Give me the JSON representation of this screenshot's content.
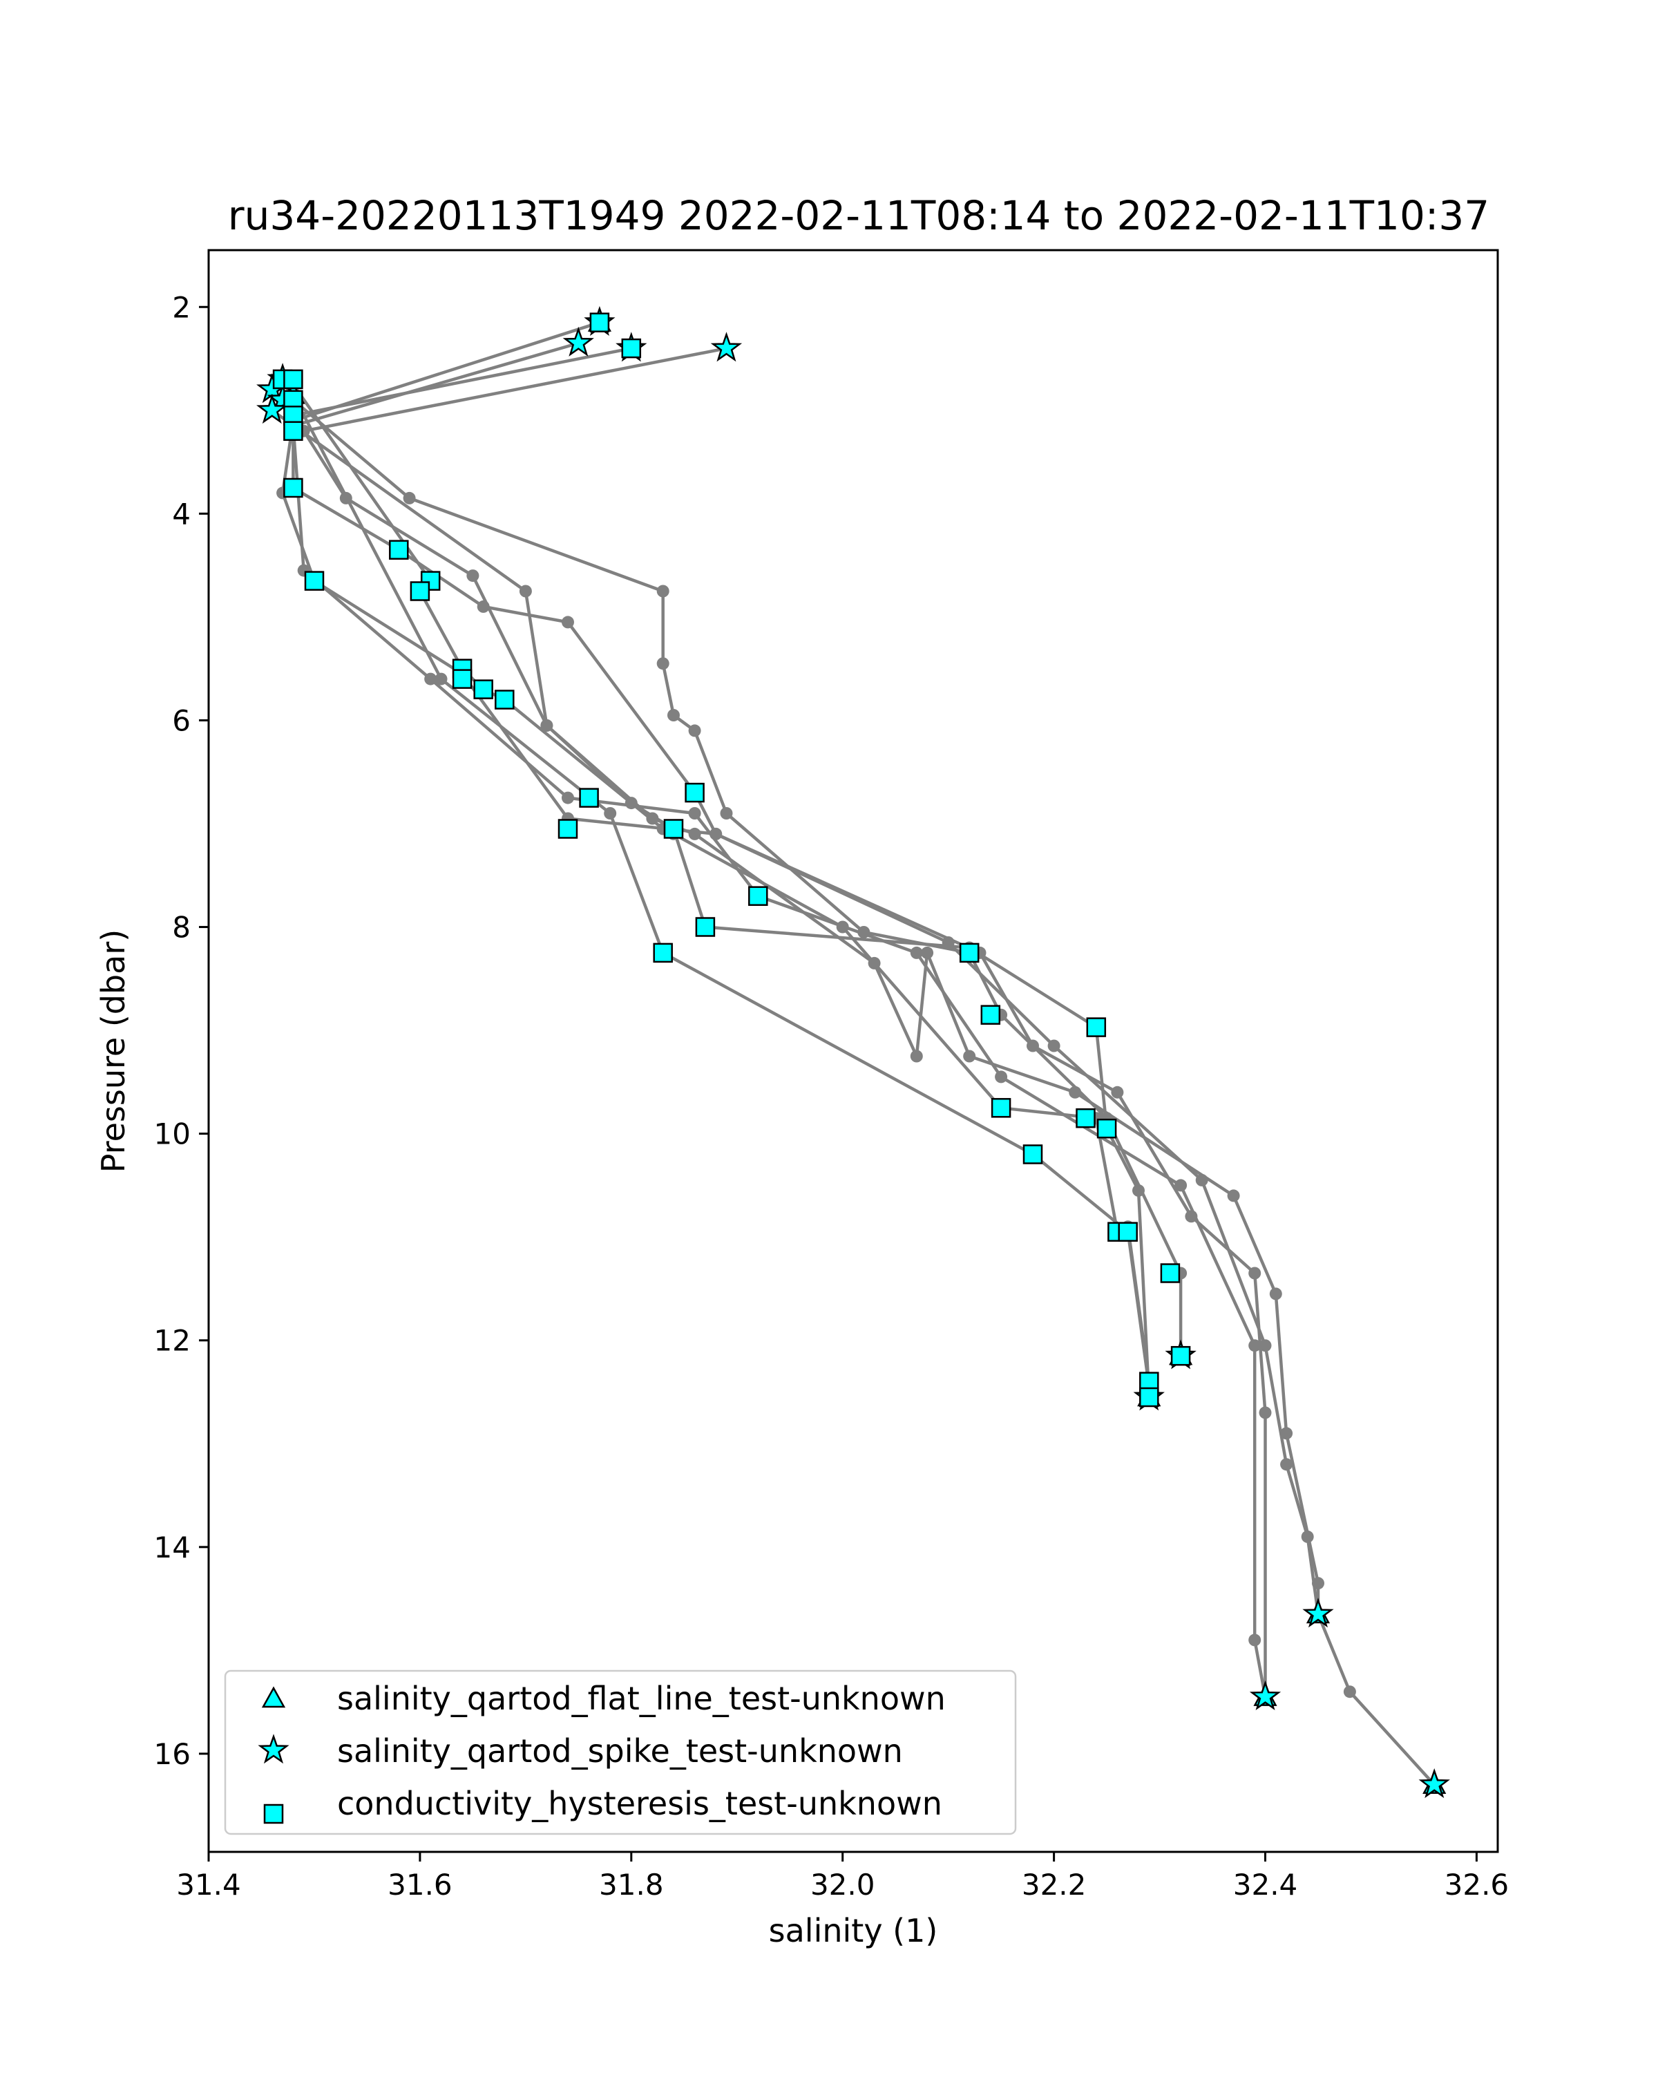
{
  "chart_data": {
    "type": "scatter",
    "title": "ru34-20220113T1949 2022-02-11T08:14 to 2022-02-11T10:37",
    "xlabel": "salinity (1)",
    "ylabel": "Pressure (dbar)",
    "xlim": [
      31.4,
      32.62
    ],
    "ylim": [
      16.95,
      1.45
    ],
    "y_inverted": true,
    "grid": false,
    "legend_placement": "lower left",
    "x_ticks": [
      31.4,
      31.6,
      31.8,
      32.0,
      32.2,
      32.4,
      32.6
    ],
    "x_tick_labels": [
      "31.4",
      "31.6",
      "31.8",
      "32.0",
      "32.2",
      "32.4",
      "32.6"
    ],
    "y_ticks": [
      2,
      4,
      6,
      8,
      10,
      12,
      14,
      16
    ],
    "y_tick_labels": [
      "2",
      "4",
      "6",
      "8",
      "10",
      "12",
      "14",
      "16"
    ],
    "colors": {
      "profile_line": "#808080",
      "marker_fill": "#00ffff",
      "marker_edge": "#000000"
    },
    "profiles": [
      [
        [
          31.77,
          2.15
        ],
        [
          31.48,
          3.1
        ],
        [
          31.47,
          3.8
        ],
        [
          31.5,
          4.65
        ],
        [
          31.64,
          5.55
        ],
        [
          31.74,
          6.95
        ],
        [
          31.88,
          7.1
        ],
        [
          32.1,
          8.15
        ],
        [
          32.2,
          9.15
        ],
        [
          32.34,
          10.45
        ],
        [
          32.4,
          12.05
        ],
        [
          32.42,
          13.2
        ],
        [
          32.44,
          13.9
        ],
        [
          32.45,
          14.65
        ],
        [
          32.48,
          15.4
        ],
        [
          32.56,
          16.3
        ]
      ],
      [
        [
          31.75,
          2.35
        ],
        [
          31.48,
          3.15
        ],
        [
          31.49,
          4.55
        ],
        [
          31.61,
          5.6
        ],
        [
          31.74,
          6.75
        ],
        [
          31.86,
          6.9
        ],
        [
          31.92,
          7.7
        ],
        [
          32.07,
          8.25
        ],
        [
          32.15,
          9.45
        ],
        [
          32.32,
          10.5
        ],
        [
          32.39,
          12.05
        ],
        [
          32.39,
          14.9
        ],
        [
          32.4,
          15.45
        ]
      ],
      [
        [
          31.89,
          2.4
        ],
        [
          31.49,
          3.2
        ],
        [
          31.53,
          3.85
        ],
        [
          31.65,
          4.6
        ],
        [
          31.72,
          6.05
        ],
        [
          31.82,
          6.95
        ],
        [
          31.86,
          7.1
        ],
        [
          32.03,
          8.35
        ],
        [
          32.07,
          9.25
        ],
        [
          32.08,
          8.25
        ],
        [
          32.12,
          9.25
        ],
        [
          32.22,
          9.6
        ],
        [
          32.37,
          10.6
        ],
        [
          32.41,
          11.55
        ],
        [
          32.42,
          12.9
        ],
        [
          32.45,
          14.35
        ],
        [
          32.45,
          14.65
        ]
      ],
      [
        [
          31.8,
          2.4
        ],
        [
          31.48,
          3.05
        ],
        [
          31.48,
          3.75
        ],
        [
          31.58,
          4.35
        ],
        [
          31.66,
          4.9
        ],
        [
          31.74,
          5.05
        ],
        [
          31.86,
          6.7
        ],
        [
          31.88,
          7.1
        ],
        [
          32.13,
          8.25
        ],
        [
          32.18,
          9.15
        ],
        [
          32.26,
          9.6
        ],
        [
          32.33,
          10.8
        ],
        [
          32.39,
          11.35
        ],
        [
          32.4,
          12.7
        ],
        [
          32.4,
          15.45
        ]
      ],
      [
        [
          31.47,
          2.7
        ],
        [
          31.48,
          2.9
        ],
        [
          31.59,
          3.85
        ],
        [
          31.83,
          4.75
        ],
        [
          31.83,
          5.45
        ],
        [
          31.84,
          5.95
        ],
        [
          31.86,
          6.1
        ],
        [
          31.89,
          6.9
        ],
        [
          32.02,
          8.05
        ],
        [
          32.12,
          8.25
        ],
        [
          32.15,
          8.85
        ],
        [
          32.25,
          9.85
        ],
        [
          32.32,
          11.35
        ],
        [
          32.32,
          12.15
        ]
      ],
      [
        [
          31.46,
          3.0
        ],
        [
          31.7,
          4.75
        ],
        [
          31.72,
          6.05
        ],
        [
          31.8,
          6.8
        ],
        [
          31.84,
          7.05
        ],
        [
          31.87,
          8.0
        ],
        [
          32.12,
          8.2
        ],
        [
          32.24,
          8.97
        ],
        [
          32.25,
          9.95
        ],
        [
          32.28,
          10.55
        ],
        [
          32.29,
          12.55
        ]
      ],
      [
        [
          31.48,
          2.75
        ],
        [
          31.61,
          4.65
        ],
        [
          31.6,
          4.75
        ],
        [
          31.64,
          5.5
        ],
        [
          31.66,
          5.7
        ],
        [
          31.68,
          5.8
        ],
        [
          31.83,
          7.05
        ],
        [
          31.84,
          7.1
        ],
        [
          32.0,
          8.0
        ],
        [
          32.15,
          9.75
        ],
        [
          32.24,
          9.85
        ],
        [
          32.26,
          10.95
        ],
        [
          32.27,
          10.9
        ],
        [
          32.29,
          12.4
        ]
      ],
      [
        [
          31.48,
          2.85
        ],
        [
          31.62,
          5.6
        ],
        [
          31.78,
          6.9
        ],
        [
          31.83,
          8.25
        ],
        [
          32.18,
          10.2
        ],
        [
          32.27,
          10.95
        ],
        [
          32.29,
          12.45
        ]
      ]
    ],
    "series": [
      {
        "name": "salinity_qartod_flat_line_test-unknown",
        "marker": "triangle",
        "points": [
          [
            31.77,
            2.15
          ],
          [
            31.47,
            2.7
          ],
          [
            31.48,
            2.85
          ],
          [
            32.29,
            12.55
          ],
          [
            32.32,
            12.15
          ],
          [
            32.45,
            14.65
          ],
          [
            32.4,
            15.45
          ],
          [
            32.56,
            16.3
          ]
        ]
      },
      {
        "name": "salinity_qartod_spike_test-unknown",
        "marker": "star",
        "points": [
          [
            31.77,
            2.15
          ],
          [
            31.75,
            2.35
          ],
          [
            31.8,
            2.4
          ],
          [
            31.89,
            2.4
          ],
          [
            31.47,
            2.7
          ],
          [
            31.46,
            2.8
          ],
          [
            31.47,
            2.9
          ],
          [
            31.46,
            3.0
          ],
          [
            32.32,
            12.15
          ],
          [
            32.29,
            12.55
          ],
          [
            32.45,
            14.65
          ],
          [
            32.4,
            15.45
          ],
          [
            32.56,
            16.3
          ]
        ]
      },
      {
        "name": "conductivity_hysteresis_test-unknown",
        "marker": "square",
        "points": [
          [
            31.77,
            2.15
          ],
          [
            31.8,
            2.4
          ],
          [
            31.47,
            2.7
          ],
          [
            31.48,
            2.7
          ],
          [
            31.48,
            2.9
          ],
          [
            31.48,
            3.05
          ],
          [
            31.48,
            3.2
          ],
          [
            31.48,
            3.75
          ],
          [
            31.5,
            4.65
          ],
          [
            31.58,
            4.35
          ],
          [
            31.61,
            4.65
          ],
          [
            31.6,
            4.75
          ],
          [
            31.64,
            5.5
          ],
          [
            31.64,
            5.6
          ],
          [
            31.66,
            5.7
          ],
          [
            31.68,
            5.8
          ],
          [
            31.74,
            7.05
          ],
          [
            31.76,
            6.75
          ],
          [
            31.84,
            7.05
          ],
          [
            31.86,
            6.7
          ],
          [
            31.87,
            8.0
          ],
          [
            31.83,
            8.25
          ],
          [
            31.92,
            7.7
          ],
          [
            32.12,
            8.25
          ],
          [
            32.14,
            8.85
          ],
          [
            32.15,
            9.75
          ],
          [
            32.18,
            10.2
          ],
          [
            32.24,
            8.97
          ],
          [
            32.23,
            9.85
          ],
          [
            32.25,
            9.95
          ],
          [
            32.26,
            10.95
          ],
          [
            32.27,
            10.95
          ],
          [
            32.31,
            11.35
          ],
          [
            32.32,
            12.15
          ],
          [
            32.29,
            12.4
          ],
          [
            32.29,
            12.55
          ]
        ]
      }
    ]
  }
}
